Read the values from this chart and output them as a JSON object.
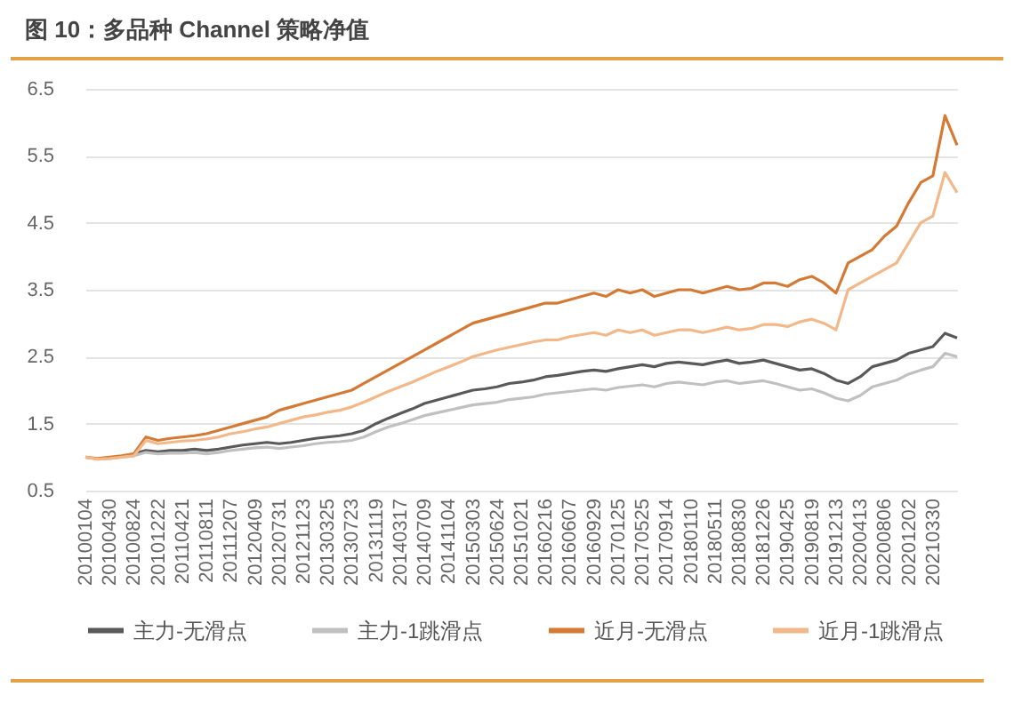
{
  "chart_data": {
    "type": "line",
    "title": "图 10：多品种 Channel 策略净值",
    "categories": [
      "20100104",
      null,
      "20100430",
      null,
      "20100824",
      null,
      "20101222",
      null,
      "20110421",
      null,
      "20110811",
      null,
      "20111207",
      null,
      "20120409",
      null,
      "20120731",
      null,
      "20121123",
      null,
      "20130325",
      null,
      "20130723",
      null,
      "20131119",
      null,
      "20140317",
      null,
      "20140709",
      null,
      "20141104",
      null,
      "20150303",
      null,
      "20150624",
      null,
      "20151021",
      null,
      "20160216",
      null,
      "20160607",
      null,
      "20160929",
      null,
      "20170125",
      null,
      "20170525",
      null,
      "20170914",
      null,
      "20180110",
      null,
      "20180511",
      null,
      "20180830",
      null,
      "20181226",
      null,
      "20190425",
      null,
      "20190819",
      null,
      "20191213",
      null,
      "20200413",
      null,
      "20200806",
      null,
      "20201202",
      null,
      "20210330",
      null,
      null
    ],
    "series": [
      {
        "name": "主力-无滑点",
        "color": "#595959",
        "values": [
          null,
          null,
          null,
          null,
          1.05,
          1.1,
          1.08,
          1.1,
          1.1,
          1.12,
          1.1,
          1.12,
          1.15,
          1.18,
          1.2,
          1.22,
          1.2,
          1.22,
          1.25,
          1.28,
          1.3,
          1.32,
          1.35,
          1.4,
          1.5,
          1.58,
          1.65,
          1.72,
          1.8,
          1.85,
          1.9,
          1.95,
          2.0,
          2.02,
          2.05,
          2.1,
          2.12,
          2.15,
          2.2,
          2.22,
          2.25,
          2.28,
          2.3,
          2.28,
          2.32,
          2.35,
          2.38,
          2.35,
          2.4,
          2.42,
          2.4,
          2.38,
          2.42,
          2.45,
          2.4,
          2.42,
          2.45,
          2.4,
          2.35,
          2.3,
          2.32,
          2.25,
          2.15,
          2.1,
          2.2,
          2.35,
          2.4,
          2.45,
          2.55,
          2.6,
          2.65,
          2.85,
          2.78
        ]
      },
      {
        "name": "主力-1跳滑点",
        "color": "#c0c0c0",
        "values": [
          1.0,
          0.97,
          0.98,
          1.0,
          1.02,
          1.07,
          1.05,
          1.06,
          1.06,
          1.07,
          1.05,
          1.07,
          1.1,
          1.12,
          1.14,
          1.15,
          1.13,
          1.15,
          1.17,
          1.2,
          1.22,
          1.23,
          1.25,
          1.3,
          1.38,
          1.45,
          1.5,
          1.56,
          1.62,
          1.66,
          1.7,
          1.74,
          1.78,
          1.8,
          1.82,
          1.86,
          1.88,
          1.9,
          1.94,
          1.96,
          1.98,
          2.0,
          2.02,
          2.0,
          2.04,
          2.06,
          2.08,
          2.05,
          2.1,
          2.12,
          2.1,
          2.08,
          2.12,
          2.14,
          2.1,
          2.12,
          2.14,
          2.1,
          2.05,
          2.0,
          2.02,
          1.96,
          1.88,
          1.84,
          1.92,
          2.05,
          2.1,
          2.15,
          2.24,
          2.3,
          2.35,
          2.55,
          2.5
        ]
      },
      {
        "name": "近月-无滑点",
        "color": "#d47a35",
        "values": [
          1.0,
          0.98,
          1.0,
          1.02,
          1.05,
          1.3,
          1.25,
          1.28,
          1.3,
          1.32,
          1.35,
          1.4,
          1.45,
          1.5,
          1.55,
          1.6,
          1.7,
          1.75,
          1.8,
          1.85,
          1.9,
          1.95,
          2.0,
          2.1,
          2.2,
          2.3,
          2.4,
          2.5,
          2.6,
          2.7,
          2.8,
          2.9,
          3.0,
          3.05,
          3.1,
          3.15,
          3.2,
          3.25,
          3.3,
          3.3,
          3.35,
          3.4,
          3.45,
          3.4,
          3.5,
          3.45,
          3.5,
          3.4,
          3.45,
          3.5,
          3.5,
          3.45,
          3.5,
          3.55,
          3.5,
          3.52,
          3.6,
          3.6,
          3.55,
          3.65,
          3.7,
          3.6,
          3.45,
          3.9,
          4.0,
          4.1,
          4.3,
          4.45,
          4.8,
          5.1,
          5.2,
          6.1,
          5.66
        ]
      },
      {
        "name": "近月-1跳滑点",
        "color": "#f2b88a",
        "values": [
          1.0,
          0.97,
          0.98,
          1.0,
          1.02,
          1.25,
          1.2,
          1.22,
          1.24,
          1.25,
          1.27,
          1.3,
          1.35,
          1.38,
          1.42,
          1.45,
          1.5,
          1.55,
          1.6,
          1.63,
          1.67,
          1.7,
          1.75,
          1.82,
          1.9,
          1.98,
          2.05,
          2.12,
          2.2,
          2.28,
          2.35,
          2.42,
          2.5,
          2.55,
          2.6,
          2.64,
          2.68,
          2.72,
          2.75,
          2.75,
          2.8,
          2.83,
          2.86,
          2.82,
          2.9,
          2.86,
          2.9,
          2.82,
          2.86,
          2.9,
          2.9,
          2.86,
          2.9,
          2.94,
          2.9,
          2.92,
          2.98,
          2.98,
          2.95,
          3.02,
          3.06,
          3.0,
          2.9,
          3.5,
          3.6,
          3.7,
          3.8,
          3.9,
          4.2,
          4.5,
          4.6,
          5.25,
          4.95
        ]
      }
    ],
    "ylim": [
      0.5,
      6.5
    ],
    "yticks": [
      0.5,
      1.5,
      2.5,
      3.5,
      4.5,
      5.5,
      6.5
    ],
    "grid": "y",
    "legend": "bottom",
    "marker": "none",
    "line_style": "solid"
  }
}
